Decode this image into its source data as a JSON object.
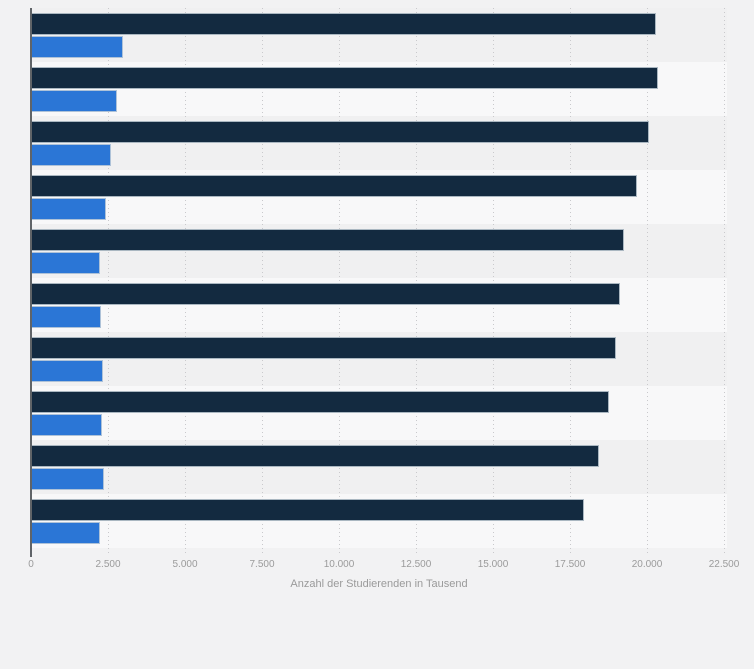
{
  "chart_data": {
    "type": "bar",
    "orientation": "horizontal",
    "title": "",
    "xlabel": "Anzahl der Studierenden in Tausend",
    "ylabel": "",
    "xlim": [
      0,
      22500
    ],
    "x_tick_values": [
      0,
      2500,
      5000,
      7500,
      10000,
      12500,
      15000,
      17500,
      20000,
      22500
    ],
    "x_tick_labels": [
      "0",
      "2.500",
      "5.000",
      "7.500",
      "10.000",
      "12.500",
      "15.000",
      "17.500",
      "20.000",
      "22.500"
    ],
    "grid": "vertical-dotted",
    "legend": "none",
    "row_background": "alternating-bands",
    "categories": [
      "",
      "",
      "",
      "",
      "",
      "",
      "",
      "",
      "",
      ""
    ],
    "series": [
      {
        "id": "navy-series",
        "label": "",
        "color": "#132a40",
        "values": [
          20230,
          20300,
          20010,
          19610,
          19200,
          19050,
          18940,
          18700,
          18370,
          17900
        ]
      },
      {
        "id": "blue-series",
        "label": "",
        "color": "#2b76d6",
        "values": [
          2910,
          2720,
          2530,
          2370,
          2190,
          2220,
          2270,
          2230,
          2300,
          2190
        ]
      }
    ]
  },
  "colors": {
    "page_background": "#f2f2f3",
    "band_dark": "#f0f0f1",
    "band_light": "#f8f8f9",
    "axis_line": "#606468",
    "gridline": "#c9c9cc",
    "tick_text": "#9b9b9b",
    "axis_title_text": "#9a9a9a"
  }
}
